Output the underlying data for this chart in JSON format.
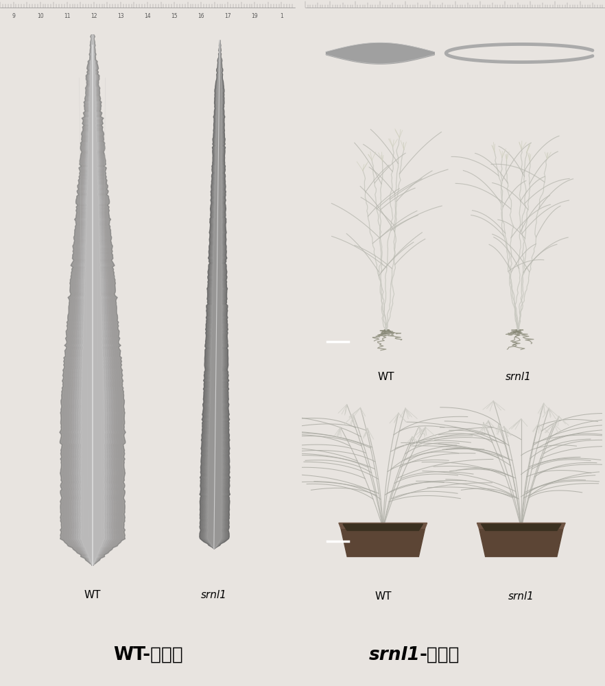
{
  "fig_bg": "#e8e4e0",
  "panel_bg_dark": "#111111",
  "panel_bg_mid": "#1a1a1a",
  "ruler_bg": "#d8d4cc",
  "white": "#ffffff",
  "label_wt_left": "WT",
  "label_srnl1_left": "srnl1",
  "label_wt_right": "WT",
  "label_srnl1_right": "srnl1",
  "bottom_left": "WT-野生型",
  "bottom_right_italic": "srnl1",
  "bottom_right_normal": "-突变体",
  "ruler_ticks_left": [
    "9",
    "10",
    "11",
    "12",
    "13",
    "14",
    "15",
    "16",
    "17",
    "19",
    "1"
  ],
  "fig_w": 8.82,
  "fig_h": 10.0,
  "dpi": 100
}
